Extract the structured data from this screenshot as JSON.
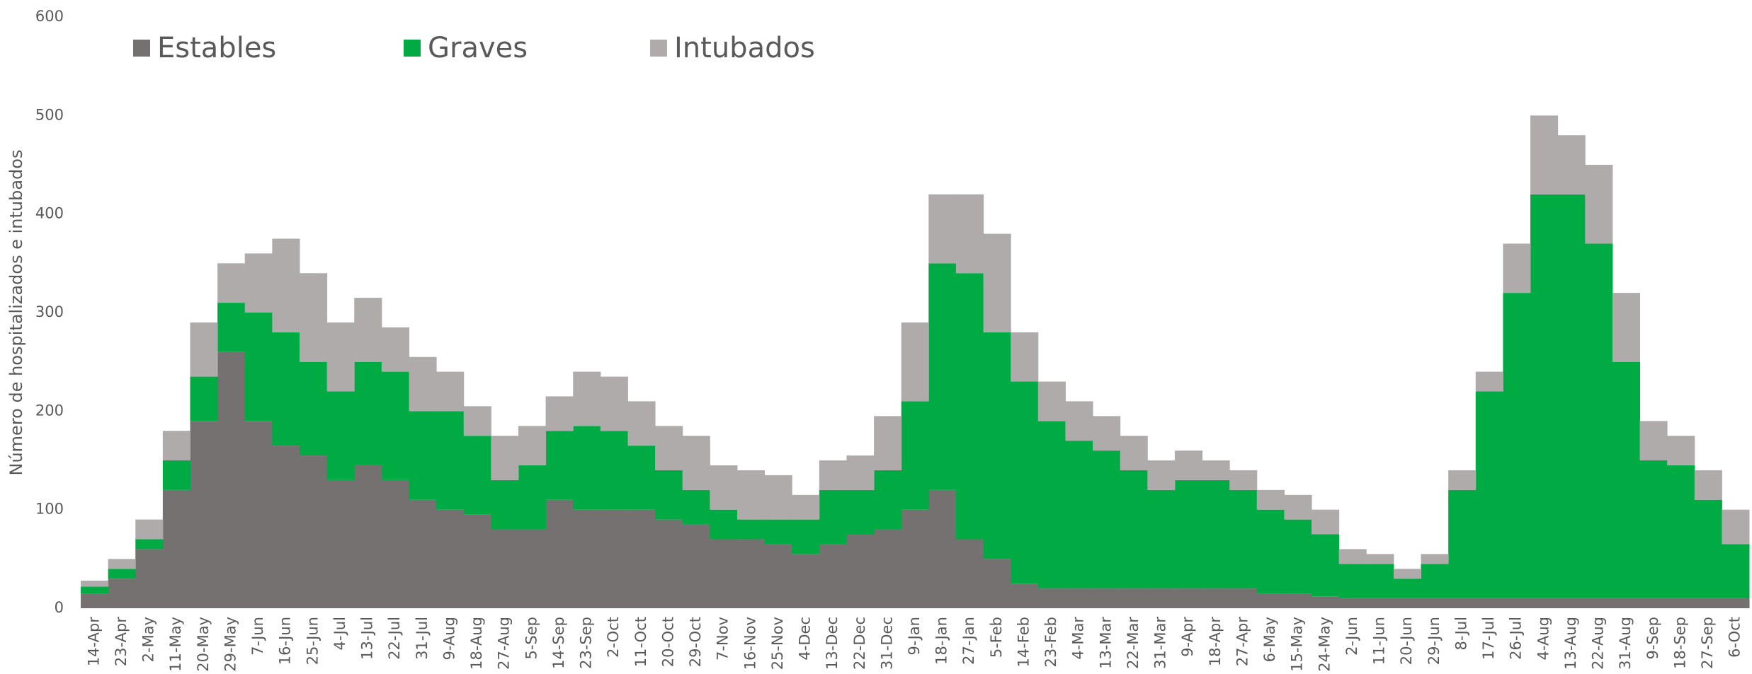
{
  "chart_data": {
    "type": "stacked_bar",
    "y_label": "Número de hospitalizados e intubados",
    "categories": [
      "14-Apr",
      "23-Apr",
      "2-May",
      "11-May",
      "20-May",
      "29-May",
      "7-Jun",
      "16-Jun",
      "25-Jun",
      "4-Jul",
      "13-Jul",
      "22-Jul",
      "31-Jul",
      "9-Aug",
      "18-Aug",
      "27-Aug",
      "5-Sep",
      "14-Sep",
      "23-Sep",
      "2-Oct",
      "11-Oct",
      "20-Oct",
      "29-Oct",
      "7-Nov",
      "16-Nov",
      "25-Nov",
      "4-Dec",
      "13-Dec",
      "22-Dec",
      "31-Dec",
      "9-Jan",
      "18-Jan",
      "27-Jan",
      "5-Feb",
      "14-Feb",
      "23-Feb",
      "4-Mar",
      "13-Mar",
      "22-Mar",
      "31-Mar",
      "9-Apr",
      "18-Apr",
      "27-Apr",
      "6-May",
      "15-May",
      "24-May",
      "2-Jun",
      "11-Jun",
      "20-Jun",
      "29-Jun",
      "8-Jul",
      "17-Jul",
      "26-Jul",
      "4-Aug",
      "13-Aug",
      "22-Aug",
      "31-Aug",
      "9-Sep",
      "18-Sep",
      "27-Sep",
      "6-Oct"
    ],
    "series": [
      {
        "name": "Estables",
        "color": "#767171",
        "values": [
          15,
          30,
          60,
          120,
          190,
          260,
          190,
          165,
          155,
          130,
          145,
          130,
          110,
          100,
          95,
          80,
          80,
          110,
          100,
          100,
          100,
          90,
          85,
          70,
          70,
          65,
          55,
          65,
          75,
          80,
          100,
          120,
          70,
          50,
          25,
          20,
          20,
          20,
          20,
          20,
          20,
          20,
          20,
          15,
          15,
          12,
          10,
          10,
          10,
          10,
          10,
          10,
          10,
          10,
          10,
          10,
          10,
          10,
          10,
          10,
          10
        ]
      },
      {
        "name": "Graves",
        "color": "#00ab44",
        "values": [
          7,
          10,
          10,
          30,
          45,
          50,
          110,
          115,
          95,
          90,
          105,
          110,
          90,
          100,
          80,
          50,
          65,
          70,
          85,
          80,
          65,
          50,
          35,
          30,
          20,
          25,
          35,
          55,
          45,
          60,
          110,
          230,
          270,
          230,
          205,
          170,
          150,
          140,
          120,
          100,
          110,
          110,
          100,
          85,
          75,
          63,
          35,
          35,
          20,
          35,
          110,
          210,
          310,
          410,
          410,
          360,
          240,
          140,
          135,
          100,
          55
        ]
      },
      {
        "name": "Intubados",
        "color": "#afabab",
        "values": [
          6,
          10,
          20,
          30,
          55,
          40,
          60,
          95,
          90,
          70,
          65,
          45,
          55,
          40,
          30,
          45,
          40,
          35,
          55,
          55,
          45,
          45,
          55,
          45,
          50,
          45,
          25,
          30,
          35,
          55,
          80,
          70,
          80,
          100,
          50,
          40,
          40,
          35,
          35,
          30,
          30,
          20,
          20,
          20,
          25,
          25,
          15,
          10,
          10,
          10,
          20,
          20,
          50,
          80,
          60,
          80,
          70,
          40,
          30,
          30,
          35
        ]
      }
    ],
    "ylim": [
      0,
      600
    ],
    "yticks": [
      0,
      100,
      200,
      300,
      400,
      500,
      600
    ]
  }
}
